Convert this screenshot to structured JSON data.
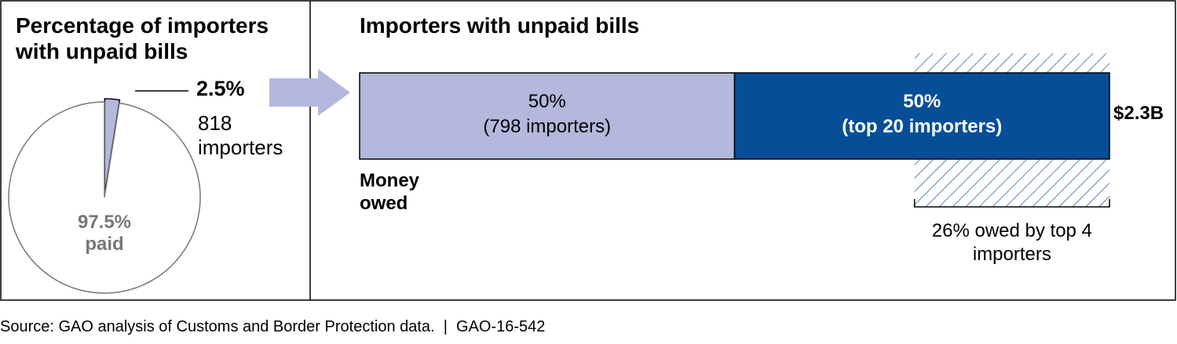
{
  "chart_data": [
    {
      "type": "pie",
      "title": "Percentage of importers with unpaid bills",
      "categories": [
        "818 importers",
        "paid"
      ],
      "values": [
        2.5,
        97.5
      ],
      "value_labels": [
        "2.5%",
        "97.5%"
      ],
      "colors": [
        "#b3b8dc",
        "#ffffff"
      ]
    },
    {
      "type": "stacked-bar",
      "title": "Importers with unpaid bills",
      "axis_label": "Money owed",
      "xlim": [
        0,
        100
      ],
      "series": [
        {
          "name": "(798 importers)",
          "color": "#b3b8dc",
          "values": [
            50
          ],
          "value_labels": [
            "50%"
          ]
        },
        {
          "name": "(top 20 importers)",
          "color": "#064f96",
          "values": [
            50
          ],
          "value_labels": [
            "50%"
          ]
        }
      ],
      "total_label": "$2.3B",
      "highlight": {
        "value": 26,
        "value_label": "26%",
        "text": "owed by top 4 importers"
      }
    }
  ],
  "source": "Source: GAO analysis of Customs and Border Protection data.  |  GAO-16-542"
}
